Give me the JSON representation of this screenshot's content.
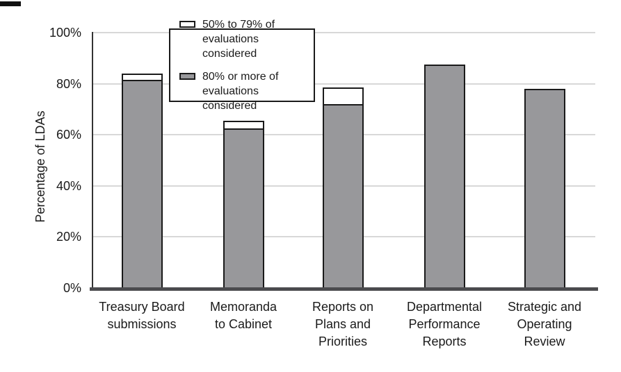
{
  "page": {
    "background": "#ffffff",
    "artifact": "small-black-dash-top-left"
  },
  "chart_data": {
    "type": "bar",
    "stacked": true,
    "title": "",
    "xlabel": "",
    "ylabel": "Percentage of LDAs",
    "ylim": [
      0,
      100
    ],
    "grid": "horizontal",
    "yticks": [
      {
        "value": 100,
        "label": "100%"
      },
      {
        "value": 80,
        "label": "80%"
      },
      {
        "value": 60,
        "label": "60%"
      },
      {
        "value": 40,
        "label": "40%"
      },
      {
        "value": 20,
        "label": "20%"
      },
      {
        "value": 0,
        "label": "0%"
      }
    ],
    "categories": [
      "Treasury Board\nsubmissions",
      "Memoranda\nto Cabinet",
      "Reports on\nPlans and\nPriorities",
      "Departmental\nPerformance\nReports",
      "Strategic and\nOperating\nReview"
    ],
    "series": [
      {
        "name": "50% to 79% of evaluations considered",
        "color": "#ffffff",
        "values": [
          3,
          3.5,
          7,
          0,
          0
        ]
      },
      {
        "name": "80% or more of evaluations considered",
        "color": "#98989b",
        "values": [
          81,
          62,
          71.5,
          87.5,
          78
        ]
      }
    ],
    "stack_totals": [
      84,
      65.5,
      78.5,
      87.5,
      78
    ],
    "legend": {
      "position": "inside-top-left",
      "items": [
        {
          "label": "50% to 79% of\nevaluations considered",
          "color": "#ffffff"
        },
        {
          "label": "80% or more of\nevaluations considered",
          "color": "#98989b"
        }
      ]
    }
  },
  "colors": {
    "bar_fill": "#98989b",
    "bar_border": "#1a1a1a",
    "gridline": "#d8d8d8",
    "axis_bottom": "#4b4b4e",
    "axis_left": "#333333",
    "text": "#1a1a1a"
  }
}
